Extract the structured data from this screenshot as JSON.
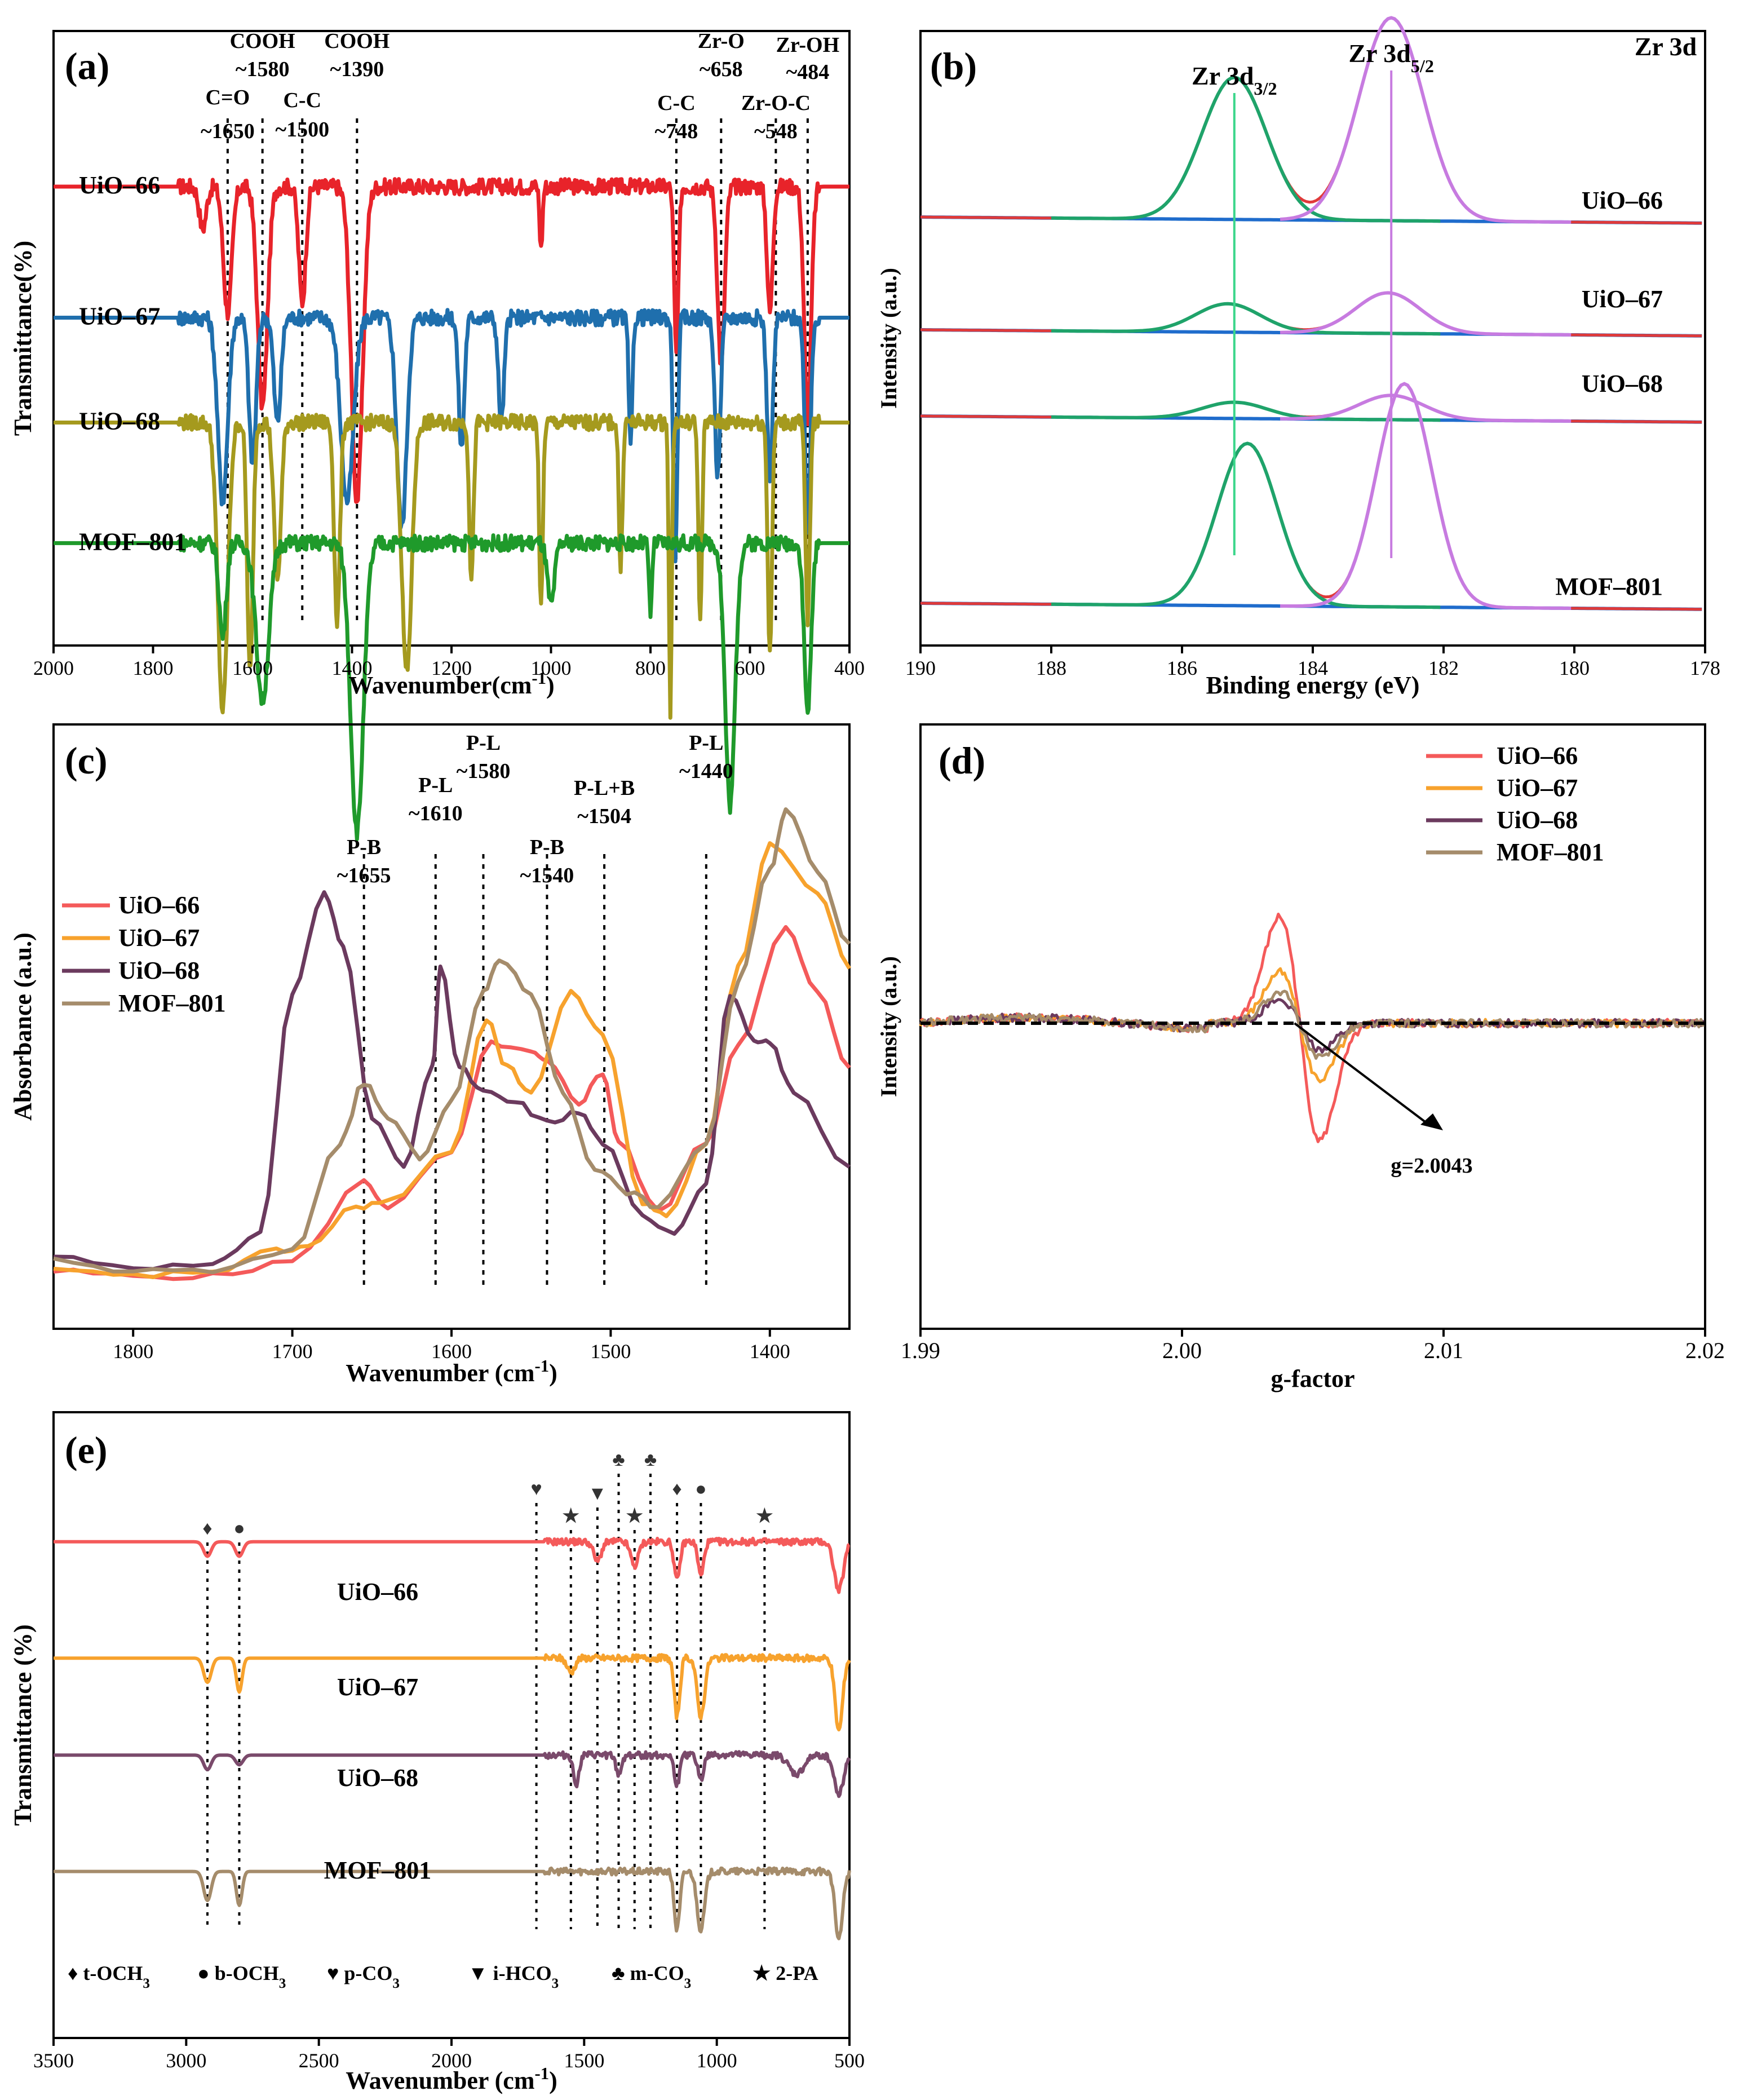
{
  "chart_data": [
    {
      "panel": "(a)",
      "type": "line",
      "xlabel": "Wavenumber(cm",
      "xlabel_sup": "-1",
      "xlabel_end": ")",
      "ylabel": "Transmittance(%)",
      "xlim": [
        2000,
        400
      ],
      "xticks": [
        2000,
        1800,
        1600,
        1400,
        1200,
        1000,
        800,
        600,
        400
      ],
      "series": [
        {
          "name": "UiO–66",
          "color": "#e8232a",
          "baseline": 80,
          "dips": [
            [
              1700,
              8,
              10
            ],
            [
              1650,
              24,
              12
            ],
            [
              1580,
              42,
              14
            ],
            [
              1500,
              22,
              10
            ],
            [
              1390,
              60,
              16
            ],
            [
              1020,
              12,
              4
            ],
            [
              748,
              32,
              6
            ],
            [
              658,
              34,
              10
            ],
            [
              560,
              24,
              8
            ],
            [
              484,
              44,
              10
            ]
          ]
        },
        {
          "name": "UiO–67",
          "color": "#1f6fad",
          "baseline": 55,
          "dips": [
            [
              1660,
              35,
              14
            ],
            [
              1600,
              28,
              10
            ],
            [
              1550,
              20,
              10
            ],
            [
              1410,
              35,
              18
            ],
            [
              1300,
              40,
              14
            ],
            [
              1180,
              25,
              8
            ],
            [
              1100,
              20,
              8
            ],
            [
              840,
              25,
              5
            ],
            [
              750,
              45,
              6
            ],
            [
              665,
              30,
              8
            ],
            [
              560,
              30,
              8
            ],
            [
              484,
              40,
              8
            ]
          ]
        },
        {
          "name": "UiO–68",
          "color": "#a59a1e",
          "baseline": 35,
          "dips": [
            [
              1660,
              55,
              14
            ],
            [
              1605,
              48,
              8
            ],
            [
              1550,
              30,
              10
            ],
            [
              1430,
              38,
              8
            ],
            [
              1290,
              48,
              14
            ],
            [
              1160,
              30,
              6
            ],
            [
              1020,
              36,
              5
            ],
            [
              860,
              28,
              5
            ],
            [
              760,
              55,
              4
            ],
            [
              700,
              38,
              5
            ],
            [
              560,
              44,
              6
            ],
            [
              484,
              38,
              6
            ]
          ]
        },
        {
          "name": "MOF–801",
          "color": "#1f9a2b",
          "baseline": 12,
          "dips": [
            [
              1660,
              18,
              10
            ],
            [
              1580,
              30,
              18
            ],
            [
              1390,
              55,
              18
            ],
            [
              1000,
              12,
              10
            ],
            [
              800,
              14,
              4
            ],
            [
              640,
              50,
              14
            ],
            [
              484,
              32,
              10
            ]
          ]
        }
      ],
      "ref_lines": [
        {
          "x": 1650,
          "label": "C=O",
          "sub": "~1650"
        },
        {
          "x": 1580,
          "label": "COOH",
          "sub": "~1580"
        },
        {
          "x": 1500,
          "label": "C-C",
          "sub": "~1500"
        },
        {
          "x": 1390,
          "label": "COOH",
          "sub": "~1390"
        },
        {
          "x": 748,
          "label": "C-C",
          "sub": "~748"
        },
        {
          "x": 658,
          "label": "Zr-O",
          "sub": "~658"
        },
        {
          "x": 548,
          "label": "Zr-O-C",
          "sub": "~548"
        },
        {
          "x": 484,
          "label": "Zr-OH",
          "sub": "~484"
        }
      ]
    },
    {
      "panel": "(b)",
      "type": "line",
      "title": "Zr 3d",
      "xlabel": "Binding energy (eV)",
      "ylabel": "Intensity (a.u.)",
      "xlim": [
        190,
        178
      ],
      "xticks": [
        190,
        188,
        186,
        184,
        182,
        180,
        178
      ],
      "peak_labels": [
        {
          "x": 185.2,
          "text": "Zr 3d",
          "sub": "3/2"
        },
        {
          "x": 182.8,
          "text": "Zr 3d",
          "sub": "5/2"
        }
      ],
      "series": [
        {
          "name": "UiO–66",
          "offset": 60,
          "peaks": [
            [
              185.2,
              35,
              0.7
            ],
            [
              182.8,
              50,
              0.7
            ]
          ]
        },
        {
          "name": "UiO–67",
          "offset": 38,
          "peaks": [
            [
              185.3,
              7,
              0.7
            ],
            [
              182.85,
              10,
              0.7
            ]
          ]
        },
        {
          "name": "UiO–68",
          "offset": 25,
          "peaks": [
            [
              185.2,
              4,
              0.7
            ],
            [
              182.8,
              6,
              0.7
            ]
          ]
        },
        {
          "name": "MOF–801",
          "offset": 0,
          "peaks": [
            [
              185.0,
              40,
              0.65
            ],
            [
              182.6,
              55,
              0.6
            ]
          ]
        }
      ]
    },
    {
      "panel": "(c)",
      "type": "line",
      "xlabel": "Wavenumber (cm",
      "xlabel_sup": "-1",
      "xlabel_end": ")",
      "ylabel": "Absorbance (a.u.)",
      "xlim": [
        1850,
        1350
      ],
      "xticks": [
        1800,
        1700,
        1600,
        1500,
        1400
      ],
      "ref_lines": [
        {
          "x": 1655,
          "label": "P-B",
          "sub": "~1655"
        },
        {
          "x": 1610,
          "label": "P-L",
          "sub": "~1610"
        },
        {
          "x": 1580,
          "label": "P-L",
          "sub": "~1580"
        },
        {
          "x": 1540,
          "label": "P-B",
          "sub": "~1540"
        },
        {
          "x": 1504,
          "label": "P-L+B",
          "sub": "~1504"
        },
        {
          "x": 1440,
          "label": "P-L",
          "sub": "~1440"
        }
      ],
      "series": [
        {
          "name": "UiO–66",
          "color": "#f45a5a",
          "points": [
            [
              1850,
              4
            ],
            [
              1800,
              3
            ],
            [
              1750,
              3
            ],
            [
              1700,
              6
            ],
            [
              1655,
              22
            ],
            [
              1640,
              17
            ],
            [
              1600,
              28
            ],
            [
              1575,
              50
            ],
            [
              1550,
              48
            ],
            [
              1540,
              46
            ],
            [
              1520,
              38
            ],
            [
              1505,
              44
            ],
            [
              1495,
              30
            ],
            [
              1470,
              16
            ],
            [
              1440,
              30
            ],
            [
              1420,
              50
            ],
            [
              1390,
              73
            ],
            [
              1370,
              60
            ],
            [
              1350,
              45
            ]
          ]
        },
        {
          "name": "UiO–67",
          "color": "#f7a22d",
          "points": [
            [
              1850,
              4
            ],
            [
              1800,
              3
            ],
            [
              1750,
              4
            ],
            [
              1710,
              8
            ],
            [
              1690,
              9
            ],
            [
              1660,
              17
            ],
            [
              1640,
              18
            ],
            [
              1600,
              28
            ],
            [
              1578,
              55
            ],
            [
              1565,
              45
            ],
            [
              1550,
              40
            ],
            [
              1525,
              60
            ],
            [
              1505,
              52
            ],
            [
              1480,
              18
            ],
            [
              1465,
              15
            ],
            [
              1440,
              30
            ],
            [
              1420,
              65
            ],
            [
              1400,
              90
            ],
            [
              1370,
              80
            ],
            [
              1350,
              65
            ]
          ]
        },
        {
          "name": "UiO–68",
          "color": "#6b3a5e",
          "points": [
            [
              1850,
              7
            ],
            [
              1800,
              5
            ],
            [
              1750,
              5
            ],
            [
              1720,
              12
            ],
            [
              1700,
              60
            ],
            [
              1680,
              80
            ],
            [
              1668,
              70
            ],
            [
              1650,
              35
            ],
            [
              1630,
              25
            ],
            [
              1612,
              45
            ],
            [
              1607,
              65
            ],
            [
              1595,
              45
            ],
            [
              1580,
              40
            ],
            [
              1560,
              38
            ],
            [
              1540,
              34
            ],
            [
              1520,
              36
            ],
            [
              1505,
              30
            ],
            [
              1480,
              15
            ],
            [
              1460,
              12
            ],
            [
              1440,
              22
            ],
            [
              1425,
              60
            ],
            [
              1410,
              50
            ],
            [
              1400,
              50
            ],
            [
              1385,
              40
            ],
            [
              1350,
              25
            ]
          ]
        },
        {
          "name": "MOF–801",
          "color": "#a58c6b",
          "points": [
            [
              1850,
              6
            ],
            [
              1800,
              4
            ],
            [
              1750,
              4
            ],
            [
              1700,
              8
            ],
            [
              1670,
              30
            ],
            [
              1655,
              42
            ],
            [
              1640,
              35
            ],
            [
              1620,
              27
            ],
            [
              1600,
              38
            ],
            [
              1580,
              60
            ],
            [
              1570,
              67
            ],
            [
              1550,
              60
            ],
            [
              1530,
              40
            ],
            [
              1510,
              25
            ],
            [
              1490,
              20
            ],
            [
              1470,
              17
            ],
            [
              1440,
              30
            ],
            [
              1420,
              62
            ],
            [
              1400,
              85
            ],
            [
              1390,
              97
            ],
            [
              1370,
              85
            ],
            [
              1350,
              70
            ]
          ]
        }
      ]
    },
    {
      "panel": "(d)",
      "type": "line",
      "xlabel": "g-factor",
      "ylabel": "Intensity (a.u.)",
      "xlim": [
        1.99,
        2.02
      ],
      "xticks": [
        1.99,
        2.0,
        2.01,
        2.02
      ],
      "annotation": {
        "text": "g=2.0043",
        "x": 2.0043
      },
      "series": [
        {
          "name": "UiO–66",
          "color": "#f45a5a",
          "amp": 100
        },
        {
          "name": "UiO–67",
          "color": "#f7a22d",
          "amp": 48
        },
        {
          "name": "UiO–68",
          "color": "#6b3a5e",
          "amp": 22
        },
        {
          "name": "MOF–801",
          "color": "#a58c6b",
          "amp": 30
        }
      ]
    },
    {
      "panel": "(e)",
      "type": "line",
      "xlabel": "Wavenumber (cm",
      "xlabel_sup": "-1",
      "xlabel_end": ")",
      "ylabel": "Transmittance (%)",
      "xlim": [
        3500,
        500
      ],
      "xticks": [
        3500,
        3000,
        2500,
        2000,
        1500,
        1000,
        500
      ],
      "ref_lines": [
        {
          "x": 2920,
          "symbol": "♦"
        },
        {
          "x": 2800,
          "symbol": "●"
        },
        {
          "x": 1680,
          "symbol": "♥"
        },
        {
          "x": 1550,
          "symbol": "★"
        },
        {
          "x": 1450,
          "symbol": "▼"
        },
        {
          "x": 1370,
          "symbol": "♣"
        },
        {
          "x": 1310,
          "symbol": "★"
        },
        {
          "x": 1250,
          "symbol": "♣"
        },
        {
          "x": 1150,
          "symbol": "♦"
        },
        {
          "x": 1060,
          "symbol": "●"
        },
        {
          "x": 820,
          "symbol": "★"
        }
      ],
      "series": [
        {
          "name": "UiO–66",
          "color": "#f45a5a",
          "baseline": 82,
          "dips": [
            [
              2920,
              3,
              20
            ],
            [
              2800,
              3,
              20
            ],
            [
              1450,
              4,
              20
            ],
            [
              1310,
              5,
              20
            ],
            [
              1150,
              8,
              15
            ],
            [
              1060,
              7,
              15
            ],
            [
              540,
              10,
              25
            ]
          ]
        },
        {
          "name": "UiO–67",
          "color": "#f7a22d",
          "baseline": 58,
          "dips": [
            [
              2920,
              5,
              20
            ],
            [
              2800,
              7,
              15
            ],
            [
              1550,
              3,
              20
            ],
            [
              1150,
              12,
              15
            ],
            [
              1060,
              12,
              20
            ],
            [
              540,
              15,
              20
            ]
          ]
        },
        {
          "name": "UiO–68",
          "color": "#7a4a6b",
          "baseline": 38,
          "dips": [
            [
              2920,
              3,
              20
            ],
            [
              2800,
              2,
              20
            ],
            [
              1530,
              6,
              15
            ],
            [
              1370,
              4,
              15
            ],
            [
              1150,
              6,
              15
            ],
            [
              1060,
              5,
              15
            ],
            [
              700,
              4,
              40
            ],
            [
              540,
              8,
              25
            ]
          ]
        },
        {
          "name": "MOF–801",
          "color": "#a58c6b",
          "baseline": 14,
          "dips": [
            [
              2920,
              6,
              20
            ],
            [
              2800,
              7,
              15
            ],
            [
              1150,
              12,
              15
            ],
            [
              1060,
              12,
              20
            ],
            [
              540,
              14,
              20
            ]
          ]
        }
      ],
      "legend": [
        {
          "symbol": "♦",
          "text": "t-OCH",
          "sub": "3"
        },
        {
          "symbol": "●",
          "text": "b-OCH",
          "sub": "3"
        },
        {
          "symbol": "♥",
          "text": "p-CO",
          "sub": "3"
        },
        {
          "symbol": "▼",
          "text": "i-HCO",
          "sub": "3"
        },
        {
          "symbol": "♣",
          "text": "m-CO",
          "sub": "3"
        },
        {
          "symbol": "★",
          "text": "2-PA",
          "sub": ""
        }
      ]
    }
  ]
}
